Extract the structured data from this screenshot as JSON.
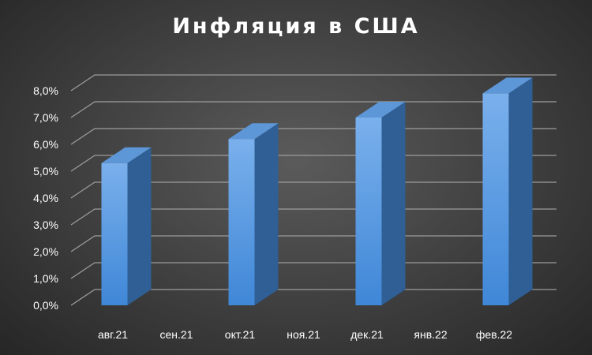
{
  "chart_data": {
    "type": "bar",
    "title": "Инфляция в США",
    "categories": [
      "авг.21",
      "сен.21",
      "окт.21",
      "ноя.21",
      "дек.21",
      "янв.22",
      "фев.22"
    ],
    "values": [
      5.3,
      null,
      6.2,
      null,
      7.0,
      null,
      7.9
    ],
    "y_ticks": [
      "0,0%",
      "1,0%",
      "2,0%",
      "3,0%",
      "4,0%",
      "5,0%",
      "6,0%",
      "7,0%",
      "8,0%"
    ],
    "ylim": [
      0,
      8
    ],
    "grid": true,
    "style": "3d-column",
    "colors": {
      "bar_front_top": "#7ab0ec",
      "bar_front_bottom": "#3f87d7",
      "bar_side": "#2f5f94",
      "bar_top": "#5d97d8",
      "grid": "#9c9c9c",
      "text": "#ffffff"
    }
  }
}
